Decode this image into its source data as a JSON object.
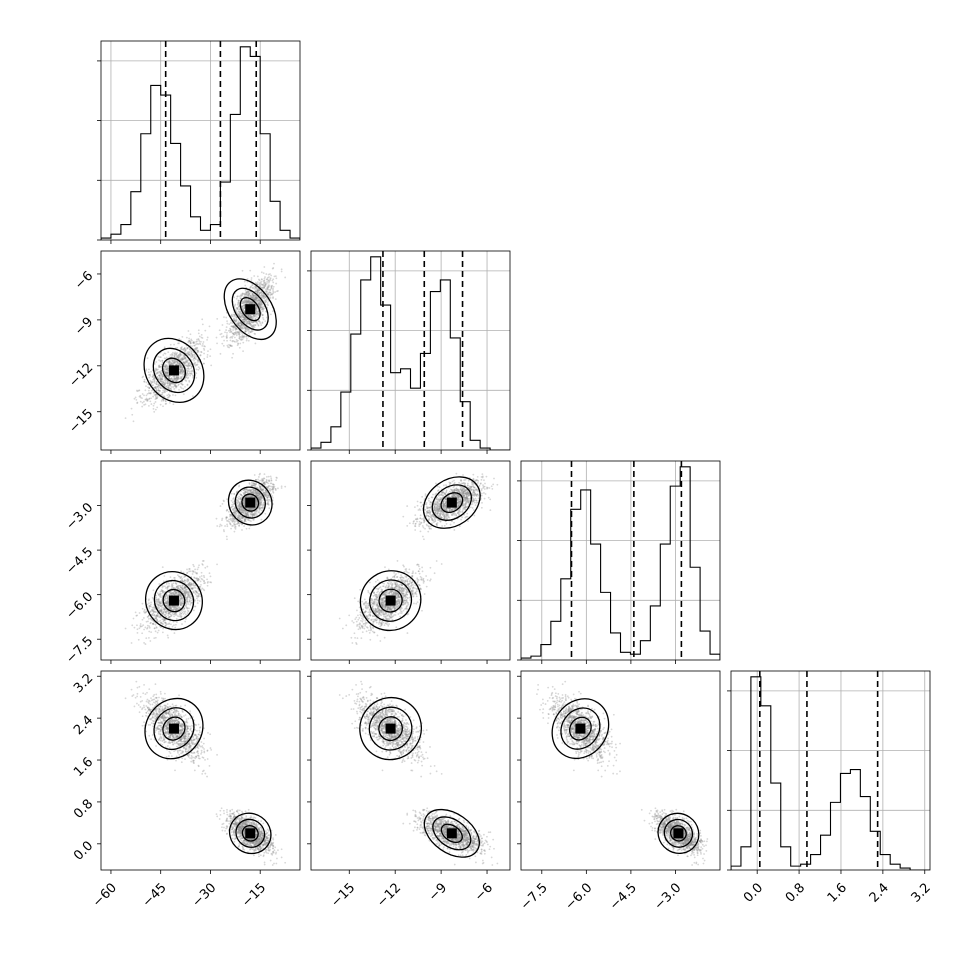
{
  "chart_data": {
    "type": "corner",
    "params": [
      {
        "range": [
          -63,
          -3
        ],
        "ticks": [
          -60,
          -45,
          -30,
          -15
        ],
        "labels": [
          "−60",
          "−45",
          "−30",
          "−15"
        ]
      },
      {
        "range": [
          -17.5,
          -4.5
        ],
        "ticks": [
          -15,
          -12,
          -9,
          -6
        ],
        "labels": [
          "−15",
          "−12",
          "−9",
          "−6"
        ]
      },
      {
        "range": [
          -8.2,
          -1.5
        ],
        "ticks": [
          -7.5,
          -6.0,
          -4.5,
          -3.0
        ],
        "labels": [
          "−7.5",
          "−6.0",
          "−4.5",
          "−3.0"
        ]
      },
      {
        "range": [
          -0.5,
          3.3
        ],
        "ticks": [
          0.0,
          0.8,
          1.6,
          2.4,
          3.2
        ],
        "labels": [
          "0.0",
          "0.8",
          "1.6",
          "2.4",
          "3.2"
        ]
      }
    ],
    "modes": [
      {
        "weight": 0.48,
        "mean": [
          -41,
          -12.3,
          -6.2,
          2.2
        ],
        "sd": [
          4.2,
          1.0,
          0.45,
          0.27
        ]
      },
      {
        "weight": 0.52,
        "mean": [
          -18,
          -8.3,
          -2.9,
          0.2
        ],
        "sd": [
          3.2,
          1.0,
          0.35,
          0.17
        ]
      }
    ],
    "quantiles": [
      [
        -43.5,
        -27,
        -16.2
      ],
      [
        -12.8,
        -10.1,
        -7.6
      ],
      [
        -6.5,
        -4.4,
        -2.8
      ],
      [
        0.05,
        0.95,
        2.3
      ]
    ],
    "histograms": [
      {
        "edges": [
          -63,
          -60,
          -57,
          -54,
          -51,
          -48,
          -45,
          -42,
          -39,
          -36,
          -33,
          -30,
          -27,
          -24,
          -21,
          -18,
          -15,
          -12,
          -9,
          -6,
          -3
        ],
        "counts": [
          1,
          3,
          8,
          25,
          55,
          80,
          75,
          50,
          28,
          12,
          5,
          8,
          30,
          65,
          100,
          95,
          55,
          20,
          5,
          1
        ]
      },
      {
        "edges": [
          -17.5,
          -16.85,
          -16.2,
          -15.55,
          -14.9,
          -14.25,
          -13.6,
          -12.95,
          -12.3,
          -11.65,
          -11.0,
          -10.35,
          -9.7,
          -9.05,
          -8.4,
          -7.75,
          -7.1,
          -6.45,
          -5.8,
          -5.15,
          -4.5
        ],
        "counts": [
          1,
          4,
          12,
          30,
          60,
          88,
          100,
          75,
          40,
          42,
          32,
          50,
          82,
          88,
          58,
          25,
          5,
          1,
          0,
          0
        ]
      },
      {
        "edges": [
          -8.2,
          -7.865,
          -7.53,
          -7.195,
          -6.86,
          -6.525,
          -6.19,
          -5.855,
          -5.52,
          -5.185,
          -4.85,
          -4.515,
          -4.18,
          -3.845,
          -3.51,
          -3.175,
          -2.84,
          -2.505,
          -2.17,
          -1.835,
          -1.5
        ],
        "counts": [
          1,
          2,
          8,
          20,
          42,
          78,
          88,
          60,
          35,
          14,
          4,
          3,
          10,
          28,
          60,
          90,
          100,
          48,
          15,
          3
        ]
      },
      {
        "edges": [
          -0.5,
          -0.31,
          -0.12,
          0.07,
          0.26,
          0.45,
          0.64,
          0.83,
          1.02,
          1.21,
          1.4,
          1.59,
          1.78,
          1.97,
          2.16,
          2.35,
          2.54,
          2.73,
          2.92,
          3.11,
          3.3
        ],
        "counts": [
          2,
          12,
          100,
          85,
          45,
          12,
          2,
          3,
          8,
          18,
          35,
          50,
          52,
          38,
          20,
          8,
          3,
          1,
          0,
          0
        ]
      }
    ]
  }
}
